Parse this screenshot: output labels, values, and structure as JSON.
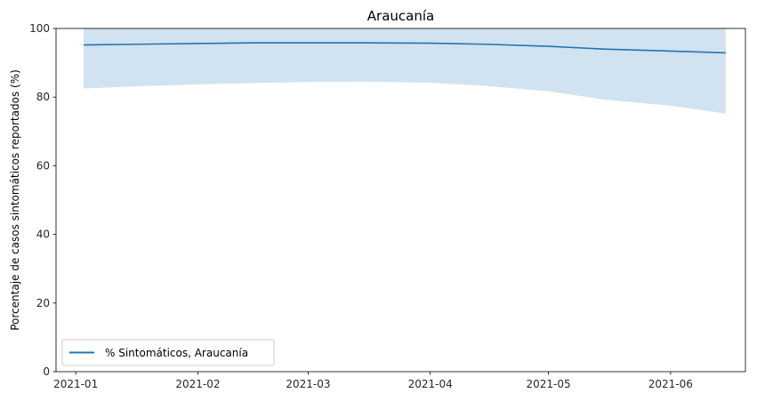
{
  "chart_data": {
    "type": "line",
    "title": "Araucanía",
    "xlabel": "",
    "ylabel": "Porcentaje de casos sintomáticos reportados (%)",
    "ylim": [
      0,
      100
    ],
    "xlim": [
      "2020-12-27",
      "2021-06-20"
    ],
    "yticks": [
      0,
      20,
      40,
      60,
      80,
      100
    ],
    "xticks": [
      "2021-01-01",
      "2021-02-01",
      "2021-03-01",
      "2021-04-01",
      "2021-05-01",
      "2021-06-01"
    ],
    "xtick_labels": [
      "2021-01",
      "2021-02",
      "2021-03",
      "2021-04",
      "2021-05",
      "2021-06"
    ],
    "grid": false,
    "legend_position": "lower-left",
    "series": [
      {
        "name": "% Sintomáticos, Araucanía",
        "color": "#1f77b4",
        "x": [
          "2021-01-03",
          "2021-01-17",
          "2021-02-01",
          "2021-02-15",
          "2021-03-01",
          "2021-03-15",
          "2021-04-01",
          "2021-04-15",
          "2021-05-01",
          "2021-05-15",
          "2021-06-01",
          "2021-06-15"
        ],
        "values": [
          95.2,
          95.4,
          95.6,
          95.8,
          95.8,
          95.8,
          95.7,
          95.4,
          94.8,
          94.0,
          93.4,
          92.9
        ]
      }
    ],
    "band": {
      "color": "#c6dbec",
      "x": [
        "2021-01-03",
        "2021-01-17",
        "2021-02-01",
        "2021-02-15",
        "2021-03-01",
        "2021-03-15",
        "2021-04-01",
        "2021-04-15",
        "2021-05-01",
        "2021-05-15",
        "2021-06-01",
        "2021-06-15"
      ],
      "lower": [
        82.5,
        83.2,
        83.7,
        84.1,
        84.4,
        84.5,
        84.2,
        83.3,
        81.7,
        79.3,
        77.5,
        75.2
      ],
      "upper": [
        100,
        100,
        100,
        100,
        100,
        100,
        100,
        100,
        100,
        100,
        100,
        100
      ]
    }
  }
}
